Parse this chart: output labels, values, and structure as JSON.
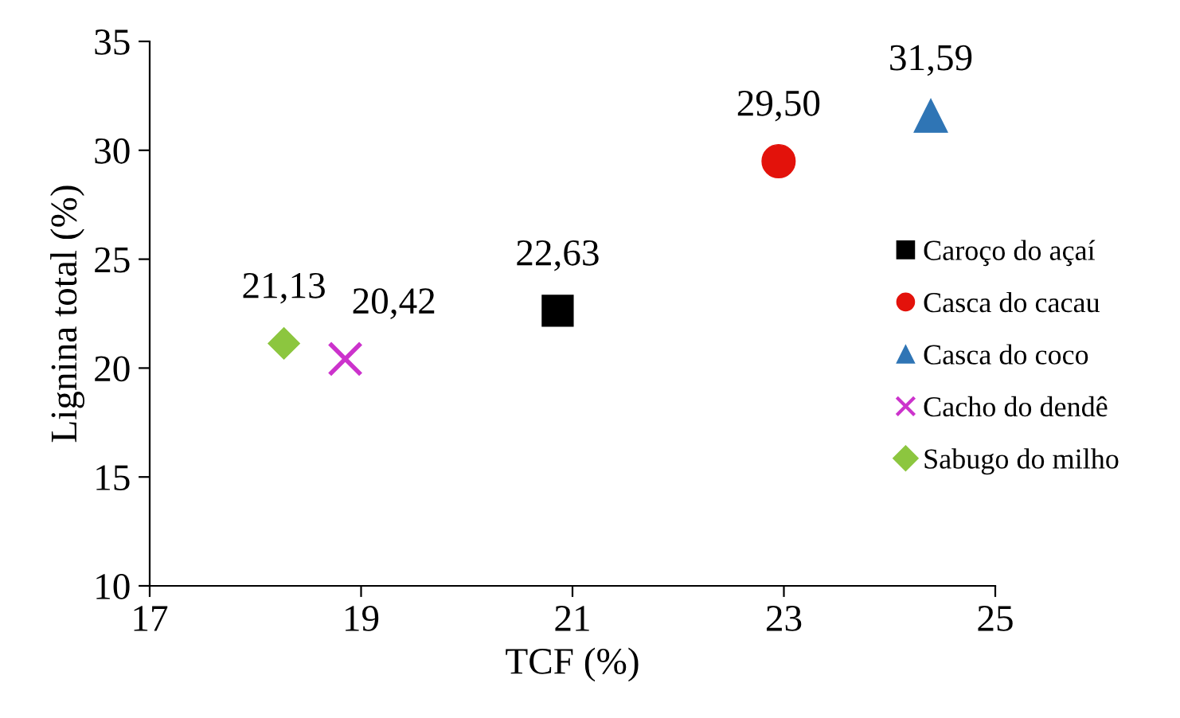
{
  "chart_data": {
    "type": "scatter",
    "xlabel": "TCF (%)",
    "ylabel": "Lignina total (%)",
    "xlim": [
      17,
      25
    ],
    "xticks": [
      17,
      19,
      21,
      23,
      25
    ],
    "ylim": [
      10,
      35
    ],
    "yticks": [
      10,
      15,
      20,
      25,
      30,
      35
    ],
    "grid": false,
    "legend": "right",
    "series": [
      {
        "name": "Caroço do açaí",
        "color": "#000000",
        "marker": "square",
        "x": [
          20.86
        ],
        "values": [
          22.63
        ],
        "value_labels": [
          "22,63"
        ]
      },
      {
        "name": "Casca do cacau",
        "color": "#e3120b",
        "marker": "circle",
        "x": [
          22.95
        ],
        "values": [
          29.5
        ],
        "value_labels": [
          "29,50"
        ]
      },
      {
        "name": "Casca do coco",
        "color": "#2f75b5",
        "marker": "triangle",
        "x": [
          24.39
        ],
        "values": [
          31.59
        ],
        "value_labels": [
          "31,59"
        ]
      },
      {
        "name": "Cacho do dendê",
        "color": "#cc33cc",
        "marker": "cross",
        "x": [
          18.85
        ],
        "values": [
          20.42
        ],
        "value_labels": [
          "20,42"
        ]
      },
      {
        "name": "Sabugo do milho",
        "color": "#8cc63f",
        "marker": "diamond",
        "x": [
          18.27
        ],
        "values": [
          21.13
        ],
        "value_labels": [
          "21,13"
        ]
      }
    ]
  }
}
